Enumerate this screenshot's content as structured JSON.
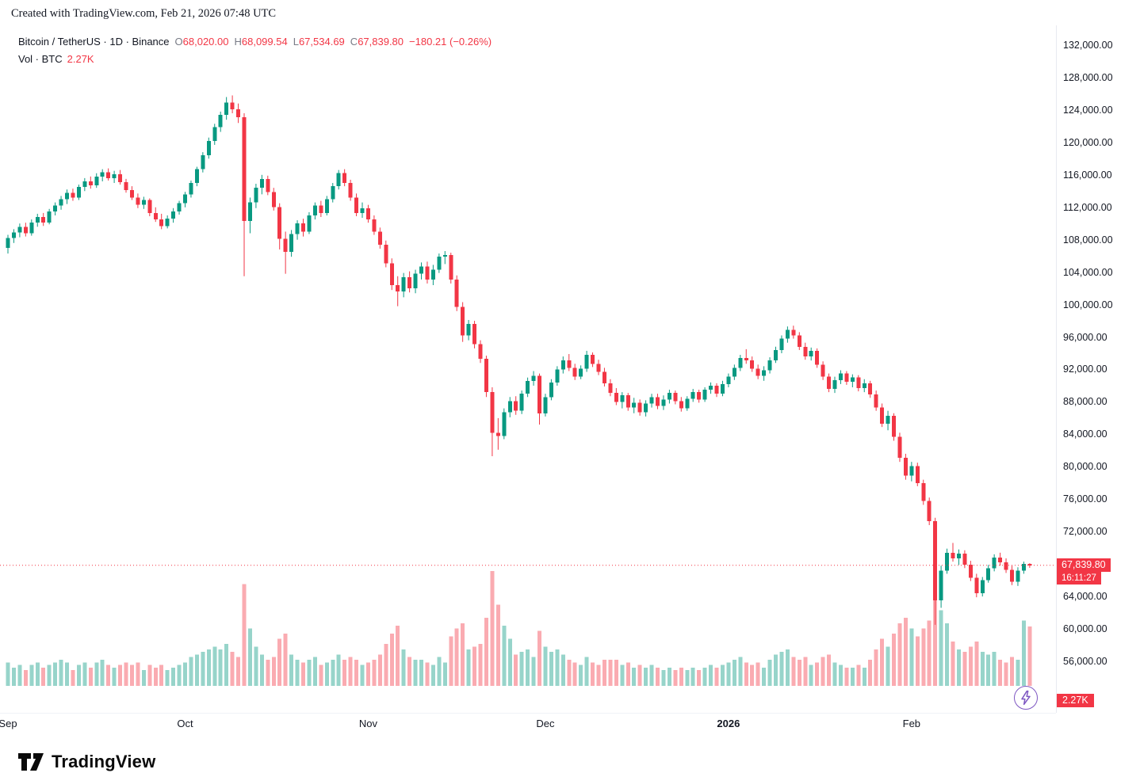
{
  "header": {
    "text": "Created with TradingView.com, Feb 21, 2026 07:48 UTC"
  },
  "legend": {
    "title": "Bitcoin / TetherUS · 1D · Binance",
    "ohlc": {
      "o_label": "O",
      "o": "68,020.00",
      "h_label": "H",
      "h": "68,099.54",
      "l_label": "L",
      "l": "67,534.69",
      "c_label": "C",
      "c": "67,839.80"
    },
    "change": "−180.21 (−0.26%)",
    "vol_label": "Vol · BTC",
    "vol_value": "2.27K"
  },
  "last_price": {
    "value": "67,839.80",
    "countdown": "16:11:27",
    "numeric": 67839.8
  },
  "volume_badge": "2.27K",
  "footer": {
    "brand": "TradingView"
  },
  "colors": {
    "up": "#089981",
    "down": "#f23645",
    "text": "#131722",
    "axis_border": "#e8eaf0",
    "accent": "#7e57c2"
  },
  "price_scale": {
    "labels": [
      {
        "text": "132,000.00",
        "value": 132000
      },
      {
        "text": "128,000.00",
        "value": 128000
      },
      {
        "text": "124,000.00",
        "value": 124000
      },
      {
        "text": "120,000.00",
        "value": 120000
      },
      {
        "text": "116,000.00",
        "value": 116000
      },
      {
        "text": "112,000.00",
        "value": 112000
      },
      {
        "text": "108,000.00",
        "value": 108000
      },
      {
        "text": "104,000.00",
        "value": 104000
      },
      {
        "text": "100,000.00",
        "value": 100000
      },
      {
        "text": "96,000.00",
        "value": 96000
      },
      {
        "text": "92,000.00",
        "value": 92000
      },
      {
        "text": "88,000.00",
        "value": 88000
      },
      {
        "text": "84,000.00",
        "value": 84000
      },
      {
        "text": "80,000.00",
        "value": 80000
      },
      {
        "text": "76,000.00",
        "value": 76000
      },
      {
        "text": "72,000.00",
        "value": 72000
      },
      {
        "text": "64,000.00",
        "value": 64000
      },
      {
        "text": "60,000.00",
        "value": 60000
      },
      {
        "text": "56,000.00",
        "value": 56000
      }
    ]
  },
  "time_scale": {
    "labels": [
      {
        "text": "Sep",
        "index": 0
      },
      {
        "text": "Oct",
        "index": 30
      },
      {
        "text": "Nov",
        "index": 61
      },
      {
        "text": "Dec",
        "index": 91
      },
      {
        "text": "2026",
        "index": 122,
        "bold": true
      },
      {
        "text": "Feb",
        "index": 153
      }
    ]
  },
  "chart_data": {
    "type": "candlestick+volume",
    "title": "Bitcoin / TetherUS · 1D · Binance",
    "y_axis_range": [
      56000,
      132000
    ],
    "volume_unit": "K BTC",
    "legend_note": "candles are [open, high, low, close, volume_K], daily Sep 1 – Feb 21",
    "candles": [
      [
        107000,
        108600,
        106300,
        108200,
        0.9
      ],
      [
        108200,
        109300,
        107600,
        108900,
        0.7
      ],
      [
        108900,
        110000,
        108300,
        109600,
        0.8
      ],
      [
        109600,
        110100,
        108400,
        108800,
        0.6
      ],
      [
        108800,
        110500,
        108500,
        110100,
        0.8
      ],
      [
        110100,
        111200,
        109600,
        110800,
        0.9
      ],
      [
        110800,
        111300,
        109700,
        110100,
        0.7
      ],
      [
        110100,
        111800,
        109900,
        111500,
        0.8
      ],
      [
        111500,
        112600,
        111000,
        112200,
        0.9
      ],
      [
        112200,
        113400,
        111700,
        113000,
        1.0
      ],
      [
        113000,
        114200,
        112400,
        113800,
        0.9
      ],
      [
        113800,
        114300,
        112800,
        113200,
        0.6
      ],
      [
        113200,
        114800,
        112900,
        114500,
        0.8
      ],
      [
        114500,
        115600,
        114000,
        115200,
        0.9
      ],
      [
        115200,
        115800,
        114300,
        114700,
        0.7
      ],
      [
        114700,
        116200,
        114400,
        115800,
        0.9
      ],
      [
        115800,
        116700,
        115200,
        116300,
        1.0
      ],
      [
        116300,
        116800,
        115300,
        115600,
        0.8
      ],
      [
        115600,
        116500,
        115000,
        116100,
        0.7
      ],
      [
        116100,
        116600,
        114800,
        115100,
        0.8
      ],
      [
        115100,
        115500,
        113800,
        114100,
        0.9
      ],
      [
        114100,
        114600,
        112900,
        113200,
        0.8
      ],
      [
        113200,
        113700,
        111900,
        112300,
        0.9
      ],
      [
        112300,
        113300,
        111800,
        112900,
        0.6
      ],
      [
        112900,
        113100,
        110900,
        111300,
        0.8
      ],
      [
        111300,
        112000,
        110200,
        110500,
        0.7
      ],
      [
        110500,
        111200,
        109300,
        109700,
        0.8
      ],
      [
        109700,
        111000,
        109400,
        110600,
        0.6
      ],
      [
        110600,
        111900,
        110100,
        111500,
        0.7
      ],
      [
        111500,
        112800,
        111100,
        112500,
        0.8
      ],
      [
        112500,
        113900,
        112000,
        113600,
        0.9
      ],
      [
        113600,
        115300,
        113200,
        115000,
        1.1
      ],
      [
        115000,
        117000,
        114600,
        116700,
        1.2
      ],
      [
        116700,
        118800,
        116300,
        118400,
        1.3
      ],
      [
        118400,
        120600,
        118000,
        120200,
        1.4
      ],
      [
        120200,
        122300,
        119700,
        121900,
        1.5
      ],
      [
        121900,
        123800,
        121300,
        123400,
        1.4
      ],
      [
        123400,
        125600,
        122800,
        124900,
        1.6
      ],
      [
        124900,
        125800,
        123600,
        124100,
        1.3
      ],
      [
        124100,
        124800,
        122400,
        123100,
        1.1
      ],
      [
        123100,
        123600,
        103500,
        110300,
        3.9
      ],
      [
        110300,
        113200,
        108800,
        112600,
        2.2
      ],
      [
        112600,
        114900,
        111900,
        114400,
        1.5
      ],
      [
        114400,
        116000,
        113600,
        115500,
        1.2
      ],
      [
        115500,
        115900,
        113500,
        113900,
        1.0
      ],
      [
        113900,
        114400,
        111600,
        112000,
        1.1
      ],
      [
        112000,
        112500,
        106800,
        108100,
        1.8
      ],
      [
        108100,
        109000,
        103800,
        106500,
        2.0
      ],
      [
        106500,
        109200,
        105900,
        108700,
        1.2
      ],
      [
        108700,
        110400,
        108000,
        110000,
        1.0
      ],
      [
        110000,
        110600,
        108400,
        109000,
        0.9
      ],
      [
        109000,
        111400,
        108700,
        111000,
        1.0
      ],
      [
        111000,
        112600,
        110500,
        112200,
        1.1
      ],
      [
        112200,
        112800,
        110800,
        111300,
        0.8
      ],
      [
        111300,
        113400,
        111000,
        113000,
        0.9
      ],
      [
        113000,
        115000,
        112600,
        114600,
        1.0
      ],
      [
        114600,
        116600,
        114200,
        116200,
        1.2
      ],
      [
        116200,
        116700,
        114600,
        115000,
        1.0
      ],
      [
        115000,
        115400,
        112800,
        113200,
        1.1
      ],
      [
        113200,
        113700,
        110900,
        111300,
        1.0
      ],
      [
        111300,
        112600,
        110700,
        111900,
        0.8
      ],
      [
        111900,
        112300,
        110100,
        110500,
        0.9
      ],
      [
        110500,
        111000,
        108600,
        109000,
        1.0
      ],
      [
        109000,
        109500,
        106900,
        107400,
        1.2
      ],
      [
        107400,
        107900,
        104600,
        105100,
        1.6
      ],
      [
        105100,
        105700,
        101800,
        102400,
        2.0
      ],
      [
        102400,
        103500,
        99800,
        101600,
        2.3
      ],
      [
        101600,
        103900,
        100900,
        103400,
        1.4
      ],
      [
        103400,
        104100,
        101500,
        102000,
        1.1
      ],
      [
        102000,
        104300,
        101400,
        103800,
        1.0
      ],
      [
        103800,
        105200,
        103100,
        104700,
        1.0
      ],
      [
        104700,
        105300,
        102600,
        103100,
        0.9
      ],
      [
        103100,
        104900,
        102400,
        104300,
        0.8
      ],
      [
        104300,
        106300,
        103900,
        105900,
        1.1
      ],
      [
        105900,
        106600,
        105000,
        106100,
        0.9
      ],
      [
        106100,
        106400,
        102600,
        103100,
        1.9
      ],
      [
        103100,
        103600,
        99200,
        99700,
        2.2
      ],
      [
        99700,
        100300,
        95400,
        96200,
        2.4
      ],
      [
        96200,
        98100,
        95600,
        97600,
        1.4
      ],
      [
        97600,
        98000,
        94600,
        95100,
        1.5
      ],
      [
        95100,
        95600,
        92800,
        93300,
        1.6
      ],
      [
        93300,
        93700,
        88600,
        89200,
        2.6
      ],
      [
        89200,
        89800,
        81300,
        84200,
        4.4
      ],
      [
        84200,
        86000,
        82100,
        83800,
        3.1
      ],
      [
        83800,
        87200,
        83400,
        86700,
        2.3
      ],
      [
        86700,
        88600,
        86100,
        88100,
        1.8
      ],
      [
        88100,
        88700,
        86400,
        86900,
        1.2
      ],
      [
        86900,
        89400,
        86500,
        89000,
        1.3
      ],
      [
        89000,
        91000,
        88600,
        90600,
        1.4
      ],
      [
        90600,
        91800,
        90000,
        91200,
        1.1
      ],
      [
        91200,
        91500,
        85200,
        86600,
        2.1
      ],
      [
        86600,
        89000,
        86200,
        88600,
        1.5
      ],
      [
        88600,
        90800,
        88200,
        90400,
        1.3
      ],
      [
        90400,
        92400,
        90000,
        92000,
        1.4
      ],
      [
        92000,
        93600,
        91500,
        93100,
        1.2
      ],
      [
        93100,
        93900,
        91800,
        92200,
        1.0
      ],
      [
        92200,
        92700,
        90700,
        91100,
        0.9
      ],
      [
        91100,
        92500,
        90800,
        92100,
        0.8
      ],
      [
        92100,
        94300,
        91700,
        93800,
        1.1
      ],
      [
        93800,
        94100,
        92300,
        92700,
        0.9
      ],
      [
        92700,
        93200,
        91300,
        91700,
        0.8
      ],
      [
        91700,
        92200,
        89900,
        90300,
        1.0
      ],
      [
        90300,
        90800,
        88700,
        89100,
        1.0
      ],
      [
        89100,
        89700,
        87600,
        88000,
        1.0
      ],
      [
        88000,
        89200,
        87200,
        88800,
        0.8
      ],
      [
        88800,
        89100,
        86900,
        87300,
        0.9
      ],
      [
        87300,
        88500,
        86600,
        87900,
        0.7
      ],
      [
        87900,
        88300,
        86300,
        86700,
        0.8
      ],
      [
        86700,
        88200,
        86200,
        87800,
        0.7
      ],
      [
        87800,
        89000,
        87300,
        88600,
        0.8
      ],
      [
        88600,
        89000,
        87100,
        87500,
        0.7
      ],
      [
        87500,
        88800,
        87000,
        88300,
        0.6
      ],
      [
        88300,
        89500,
        87800,
        89100,
        0.7
      ],
      [
        89100,
        89400,
        87700,
        88100,
        0.6
      ],
      [
        88100,
        88600,
        86800,
        87200,
        0.7
      ],
      [
        87200,
        88700,
        86900,
        88400,
        0.6
      ],
      [
        88400,
        89600,
        88000,
        89200,
        0.7
      ],
      [
        89200,
        89500,
        87900,
        88300,
        0.6
      ],
      [
        88300,
        89800,
        88000,
        89500,
        0.7
      ],
      [
        89500,
        90400,
        89000,
        90000,
        0.8
      ],
      [
        90000,
        90300,
        88600,
        89000,
        0.7
      ],
      [
        89000,
        90600,
        88700,
        90200,
        0.8
      ],
      [
        90200,
        91500,
        89800,
        91100,
        0.9
      ],
      [
        91100,
        92600,
        90700,
        92200,
        1.0
      ],
      [
        92200,
        93800,
        91800,
        93400,
        1.1
      ],
      [
        93400,
        94500,
        92700,
        93100,
        0.9
      ],
      [
        93100,
        93600,
        91700,
        92100,
        0.8
      ],
      [
        92100,
        92600,
        90800,
        91200,
        0.9
      ],
      [
        91200,
        92400,
        90600,
        91900,
        0.7
      ],
      [
        91900,
        93500,
        91500,
        93100,
        1.0
      ],
      [
        93100,
        94800,
        92800,
        94400,
        1.2
      ],
      [
        94400,
        96200,
        94000,
        95800,
        1.3
      ],
      [
        95800,
        97300,
        95300,
        96900,
        1.4
      ],
      [
        96900,
        97400,
        95800,
        96200,
        1.1
      ],
      [
        96200,
        96600,
        94400,
        94800,
        1.0
      ],
      [
        94800,
        95300,
        93200,
        93600,
        1.1
      ],
      [
        93600,
        94700,
        93100,
        94300,
        0.8
      ],
      [
        94300,
        94600,
        92200,
        92600,
        0.9
      ],
      [
        92600,
        93000,
        90700,
        91100,
        1.1
      ],
      [
        91100,
        91500,
        89200,
        89600,
        1.2
      ],
      [
        89600,
        91100,
        89100,
        90700,
        0.9
      ],
      [
        90700,
        91900,
        90200,
        91500,
        0.8
      ],
      [
        91500,
        91800,
        90100,
        90500,
        0.7
      ],
      [
        90500,
        91400,
        89800,
        91000,
        0.7
      ],
      [
        91000,
        91300,
        89300,
        89700,
        0.8
      ],
      [
        89700,
        90800,
        89200,
        90300,
        0.7
      ],
      [
        90300,
        90600,
        88500,
        88900,
        1.0
      ],
      [
        88900,
        89400,
        86900,
        87300,
        1.4
      ],
      [
        87300,
        87800,
        84900,
        85300,
        1.8
      ],
      [
        85300,
        86900,
        84500,
        86300,
        1.5
      ],
      [
        86300,
        86600,
        83200,
        83700,
        2.0
      ],
      [
        83700,
        84200,
        80600,
        81100,
        2.4
      ],
      [
        81100,
        81600,
        78400,
        78900,
        2.6
      ],
      [
        78900,
        80600,
        78200,
        80100,
        2.2
      ],
      [
        80100,
        80500,
        77600,
        78000,
        1.9
      ],
      [
        78000,
        78400,
        75300,
        75800,
        2.2
      ],
      [
        75800,
        76200,
        72800,
        73300,
        2.5
      ],
      [
        73300,
        73700,
        60500,
        63500,
        3.4
      ],
      [
        63500,
        67800,
        62600,
        67200,
        2.9
      ],
      [
        67200,
        69900,
        66800,
        69400,
        2.4
      ],
      [
        69400,
        70600,
        68300,
        68700,
        1.7
      ],
      [
        68700,
        69800,
        67900,
        69300,
        1.4
      ],
      [
        69300,
        69700,
        67500,
        67900,
        1.3
      ],
      [
        67900,
        68400,
        65900,
        66300,
        1.5
      ],
      [
        66300,
        66800,
        63900,
        64400,
        1.7
      ],
      [
        64400,
        66400,
        64000,
        66000,
        1.3
      ],
      [
        66000,
        67900,
        65700,
        67500,
        1.2
      ],
      [
        67500,
        69200,
        67100,
        68800,
        1.3
      ],
      [
        68800,
        69400,
        67800,
        68200,
        1.0
      ],
      [
        68200,
        68700,
        66900,
        67300,
        0.9
      ],
      [
        67300,
        67800,
        65400,
        65800,
        1.1
      ],
      [
        65800,
        67600,
        65300,
        67200,
        1.0
      ],
      [
        67200,
        68300,
        66800,
        68000,
        2.5
      ],
      [
        68020,
        68099.54,
        67534.69,
        67839.8,
        2.27
      ]
    ]
  }
}
